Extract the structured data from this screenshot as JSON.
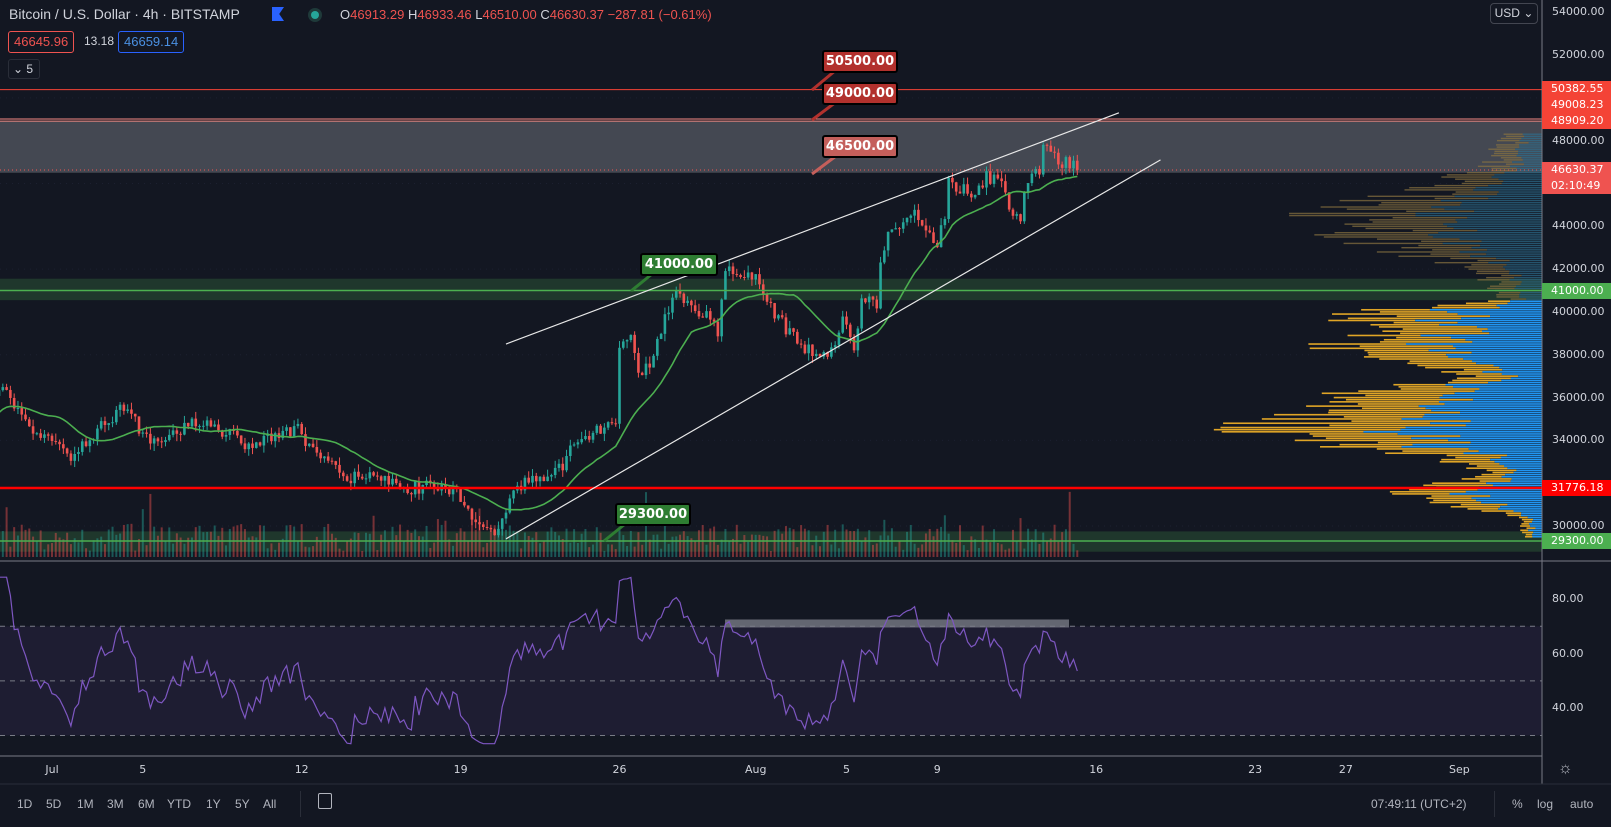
{
  "header": {
    "title": "Bitcoin / U.S. Dollar · 4h · BITSTAMP",
    "ohlc": {
      "o_label": "O",
      "o": "46913.29",
      "h_label": "H",
      "h": "46933.46",
      "l_label": "L",
      "l": "46510.00",
      "c_label": "C",
      "c": "46630.37",
      "change": "−287.81 (−0.61%)"
    },
    "bid": "46645.96",
    "spread": "13.18",
    "ask": "46659.14",
    "indicators_toggle": "5"
  },
  "price_axis": {
    "currency": "USD",
    "ticks": [
      {
        "label": "54000.00",
        "value": 54000
      },
      {
        "label": "52000.00",
        "value": 52000
      },
      {
        "label": "48000.00",
        "value": 48000
      },
      {
        "label": "44000.00",
        "value": 44000
      },
      {
        "label": "42000.00",
        "value": 42000
      },
      {
        "label": "40000.00",
        "value": 40000
      },
      {
        "label": "38000.00",
        "value": 38000
      },
      {
        "label": "36000.00",
        "value": 36000
      },
      {
        "label": "34000.00",
        "value": 34000
      },
      {
        "label": "30000.00",
        "value": 30000
      }
    ],
    "labels": [
      {
        "text": "50382.55",
        "value": 50382.55,
        "color": "#f44336"
      },
      {
        "text": "49008.23",
        "value": 49008.23,
        "color": "#f44336"
      },
      {
        "text": "48909.20",
        "value": 48909.2,
        "color": "#f44336"
      },
      {
        "text": "41000.00",
        "value": 41000,
        "color": "#4caf50"
      },
      {
        "text": "31776.18",
        "value": 31776.18,
        "color": "#ff0000"
      },
      {
        "text": "29300.00",
        "value": 29300,
        "color": "#4caf50"
      }
    ],
    "last_price": {
      "text": "46630.37",
      "value": 46630.37,
      "countdown": "02:10:49",
      "color": "#ef5350"
    }
  },
  "rsi_axis": [
    {
      "label": "80.00",
      "value": 80
    },
    {
      "label": "60.00",
      "value": 60
    },
    {
      "label": "40.00",
      "value": 40
    }
  ],
  "time_axis": [
    {
      "label": "Jul",
      "date": "Jul 1"
    },
    {
      "label": "5",
      "date": "Jul 5"
    },
    {
      "label": "12",
      "date": "Jul 12"
    },
    {
      "label": "19",
      "date": "Jul 19"
    },
    {
      "label": "26",
      "date": "Jul 26"
    },
    {
      "label": "Aug",
      "date": "Aug 1"
    },
    {
      "label": "5",
      "date": "Aug 5"
    },
    {
      "label": "9",
      "date": "Aug 9"
    },
    {
      "label": "16",
      "date": "Aug 16"
    },
    {
      "label": "23",
      "date": "Aug 23"
    },
    {
      "label": "27",
      "date": "Aug 27"
    },
    {
      "label": "Sep",
      "date": "Sep 1"
    }
  ],
  "callouts": {
    "c50500": "50500.00",
    "c49000": "49000.00",
    "c46500": "46500.00",
    "c41000": "41000.00",
    "c29300": "29300.00"
  },
  "bottom_bar": {
    "ranges": [
      "1D",
      "5D",
      "1M",
      "3M",
      "6M",
      "YTD",
      "1Y",
      "5Y",
      "All"
    ],
    "time": "07:49:11 (UTC+2)",
    "percent": "%",
    "log": "log",
    "auto": "auto"
  },
  "colors": {
    "background": "#131722",
    "up": "#26a69a",
    "down": "#ef5350",
    "ma": "#4caf50",
    "rsi": "#7e57c2",
    "resistance": "#f44336",
    "support": "#4caf50",
    "vp_up": "#2196f3",
    "vp_down": "#e0a526"
  },
  "chart_data": {
    "type": "candlestick",
    "interval": "4h",
    "price_path": [
      [
        "Jun 28 16:00",
        34000
      ],
      [
        "Jun 29 16:00",
        36600
      ],
      [
        "Jun 30 20:00",
        34700
      ],
      [
        "Jul 1 20:00",
        33300
      ],
      [
        "Jul 4 04:00",
        35650
      ],
      [
        "Jul 5 08:00",
        33800
      ],
      [
        "Jul 7 12:00",
        34960
      ],
      [
        "Jul 9 16:00",
        33800
      ],
      [
        "Jul 11 20:00",
        34500
      ],
      [
        "Jul 12 20:00",
        33100
      ],
      [
        "Jul 14 04:00",
        32150
      ],
      [
        "Jul 15 00:00",
        32600
      ],
      [
        "Jul 16 08:00",
        31700
      ],
      [
        "Jul 18 00:00",
        31900
      ],
      [
        "Jul 18 20:00",
        31700
      ],
      [
        "Jul 19 20:00",
        29800
      ],
      [
        "Jul 20 16:00",
        29600
      ],
      [
        "Jul 21 04:00",
        31200
      ],
      [
        "Jul 21 16:00",
        31900
      ],
      [
        "Jul 22 16:00",
        32400
      ],
      [
        "Jul 23 12:00",
        32900
      ],
      [
        "Jul 24 00:00",
        33800
      ],
      [
        "Jul 25 04:00",
        34500
      ],
      [
        "Jul 25 20:00",
        35000
      ],
      [
        "Jul 26 00:00",
        38200
      ],
      [
        "Jul 26 12:00",
        38700
      ],
      [
        "Jul 26 20:00",
        37100
      ],
      [
        "Jul 27 08:00",
        37600
      ],
      [
        "Jul 28 00:00",
        39800
      ],
      [
        "Jul 28 12:00",
        40700
      ],
      [
        "Jul 29 12:00",
        40000
      ],
      [
        "Jul 30 04:00",
        39800
      ],
      [
        "Jul 30 08:00",
        38900
      ],
      [
        "Jul 30 16:00",
        42200
      ],
      [
        "Jul 31 08:00",
        41500
      ],
      [
        "Aug 1 00:00",
        41900
      ],
      [
        "Aug 1 20:00",
        39950
      ],
      [
        "Aug 2 20:00",
        38550
      ],
      [
        "Aug 3 12:00",
        38100
      ],
      [
        "Aug 4 08:00",
        38200
      ],
      [
        "Aug 4 20:00",
        39800
      ],
      [
        "Aug 5 08:00",
        38100
      ],
      [
        "Aug 5 16:00",
        40700
      ],
      [
        "Aug 6 08:00",
        40400
      ],
      [
        "Aug 6 12:00",
        42100
      ],
      [
        "Aug 6 20:00",
        43700
      ],
      [
        "Aug 7 12:00",
        43970
      ],
      [
        "Aug 8 00:00",
        44600
      ],
      [
        "Aug 8 12:00",
        43970
      ],
      [
        "Aug 9 00:00",
        43200
      ],
      [
        "Aug 9 08:00",
        44600
      ],
      [
        "Aug 9 12:00",
        46000
      ],
      [
        "Aug 10 04:00",
        45700
      ],
      [
        "Aug 10 12:00",
        45200
      ],
      [
        "Aug 11 04:00",
        46300
      ],
      [
        "Aug 11 12:00",
        46150
      ],
      [
        "Aug 12 00:00",
        45700
      ],
      [
        "Aug 12 08:00",
        44300
      ],
      [
        "Aug 12 16:00",
        44430
      ],
      [
        "Aug 13 00:00",
        46300
      ],
      [
        "Aug 13 12:00",
        46500
      ],
      [
        "Aug 13 16:00",
        47800
      ],
      [
        "Aug 14 04:00",
        47560
      ],
      [
        "Aug 14 08:00",
        46630
      ],
      [
        "Aug 14 16:00",
        47100
      ],
      [
        "Aug 15 04:00",
        46630.37
      ]
    ],
    "horizontal_levels": [
      50382.55,
      49008.23,
      48909.2,
      41000,
      31776.18,
      29300
    ],
    "zone": [
      46500,
      48909.2
    ],
    "channel_upper": [
      [
        "Jul 21 00:00",
        38500
      ],
      [
        "Aug 17 00:00",
        49300
      ]
    ],
    "channel_lower": [
      [
        "Jul 21 00:00",
        29400
      ],
      [
        "Aug 18 20:00",
        47100
      ]
    ],
    "rsi_levels": [
      70,
      50,
      30
    ],
    "ylim": [
      29000,
      54000
    ]
  }
}
